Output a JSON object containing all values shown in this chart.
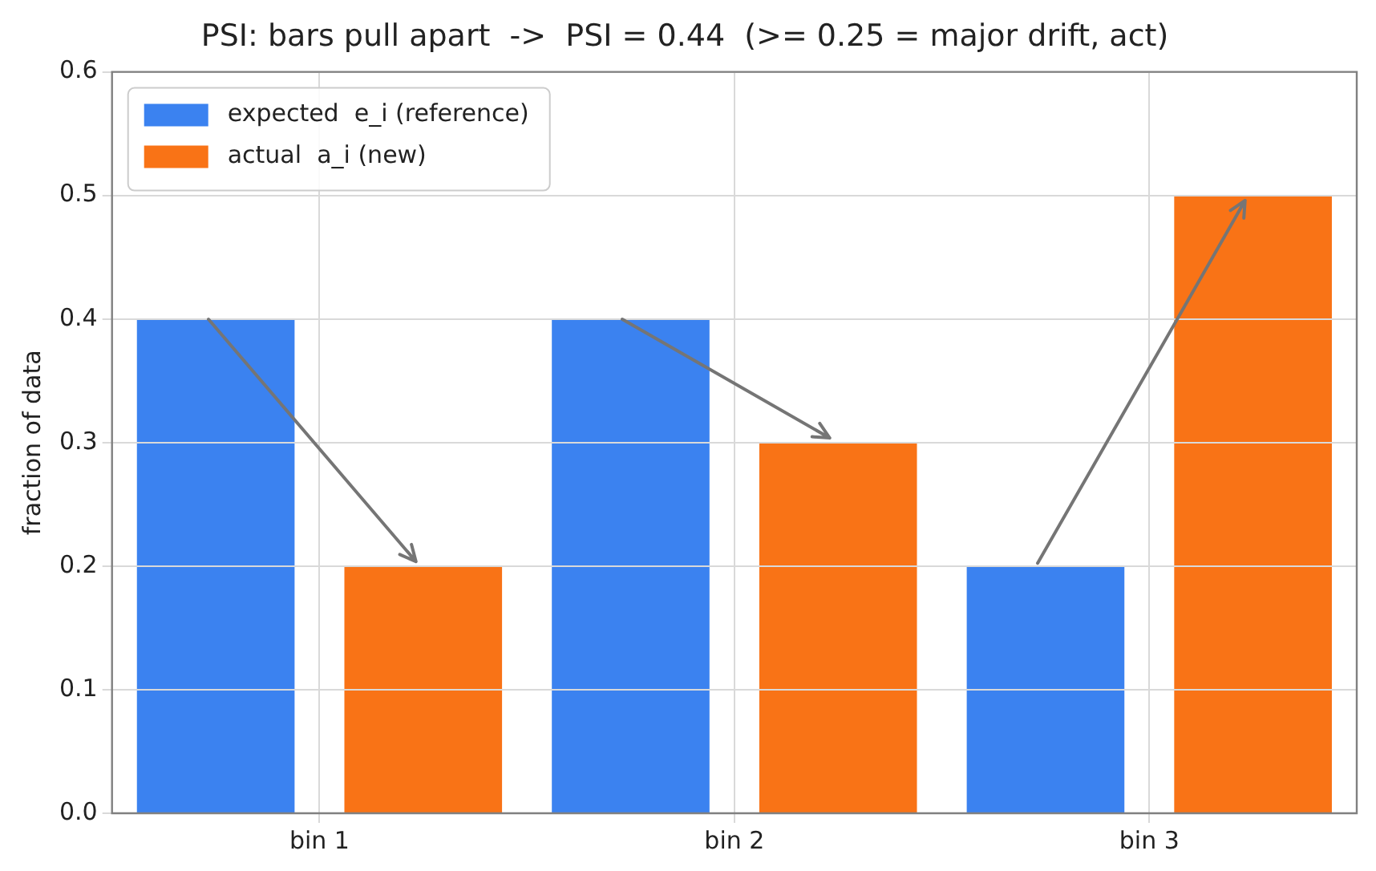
{
  "chart_data": {
    "type": "bar",
    "title": "PSI: bars pull apart  ->  PSI = 0.44  (>= 0.25 = major drift, act)",
    "ylabel": "fraction of data",
    "categories": [
      "bin 1",
      "bin 2",
      "bin 3"
    ],
    "series": [
      {
        "name": "expected  e_i (reference)",
        "color": "#3b82f0",
        "values": [
          0.4,
          0.4,
          0.2
        ]
      },
      {
        "name": "actual  a_i (new)",
        "color": "#f97316",
        "values": [
          0.2,
          0.3,
          0.5
        ]
      }
    ],
    "ylim": [
      0,
      0.6
    ],
    "yticks": [
      {
        "value": 0,
        "label": "0.0"
      },
      0.1,
      0.2,
      0.3,
      0.4,
      0.5,
      0.6
    ],
    "grid": true,
    "legend": "top left"
  }
}
